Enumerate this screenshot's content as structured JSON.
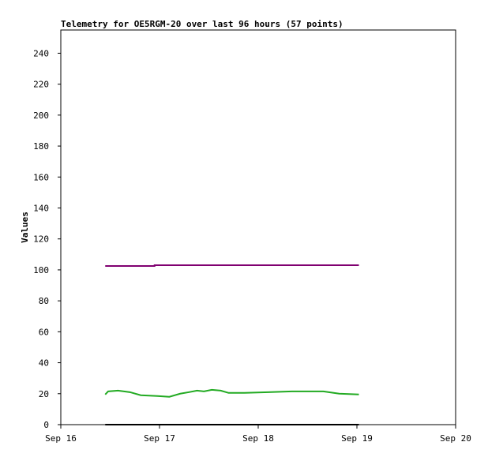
{
  "chart_data": {
    "type": "line",
    "title": "Telemetry for OE5RGM-20 over last 96 hours (57 points)",
    "y_label": "Values",
    "xlim": [
      0,
      4
    ],
    "xticks": [
      {
        "value": 0,
        "label": "Sep 16"
      },
      {
        "value": 1,
        "label": "Sep 17"
      },
      {
        "value": 2,
        "label": "Sep 18"
      },
      {
        "value": 3,
        "label": "Sep 19"
      },
      {
        "value": 4,
        "label": "Sep 20"
      }
    ],
    "ylim": [
      0,
      255
    ],
    "yticks": [
      0,
      20,
      40,
      60,
      80,
      100,
      120,
      140,
      160,
      180,
      200,
      220,
      240
    ],
    "series": [
      {
        "color": "#800070",
        "x": [
          0.45,
          0.95,
          0.95,
          1.5,
          2.0,
          2.5,
          3.02
        ],
        "values": [
          102.5,
          102.5,
          103,
          103,
          103,
          103,
          103
        ]
      },
      {
        "color": "#22aa22",
        "x": [
          0.45,
          0.48,
          0.58,
          0.7,
          0.81,
          0.98,
          1.1,
          1.21,
          1.3,
          1.38,
          1.45,
          1.53,
          1.62,
          1.7,
          1.86,
          2.1,
          2.34,
          2.66,
          2.82,
          3.02
        ],
        "values": [
          19.5,
          21.5,
          22,
          21,
          19,
          18.5,
          18,
          20,
          21,
          22,
          21.5,
          22.5,
          22,
          20.5,
          20.5,
          21,
          21.5,
          21.5,
          20,
          19.5
        ]
      },
      {
        "color": "#000000",
        "x": [
          0.45,
          3.02
        ],
        "values": [
          0,
          0
        ]
      }
    ]
  }
}
